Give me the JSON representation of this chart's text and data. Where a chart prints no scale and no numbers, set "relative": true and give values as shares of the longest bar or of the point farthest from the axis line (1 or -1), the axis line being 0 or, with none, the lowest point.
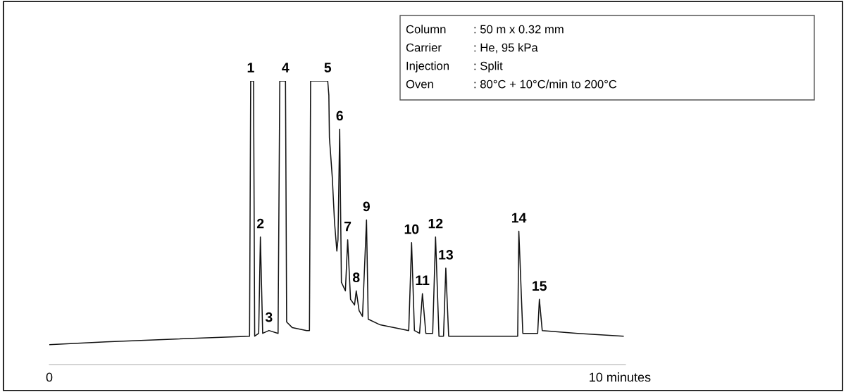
{
  "chart_data": {
    "type": "line",
    "relative": true,
    "x": [
      0,
      0.99,
      2.22,
      3.51,
      3.53,
      3.58,
      3.6,
      3.67,
      3.7,
      3.74,
      3.85,
      4.01,
      4.04,
      4.14,
      4.16,
      4.26,
      4.51,
      4.56,
      4.58,
      4.88,
      4.9,
      4.91,
      4.96,
      5.0,
      5.04,
      5.06,
      5.09,
      5.12,
      5.19,
      5.23,
      5.28,
      5.35,
      5.38,
      5.43,
      5.49,
      5.56,
      5.59,
      5.8,
      6.3,
      6.35,
      6.4,
      6.49,
      6.54,
      6.6,
      6.72,
      6.77,
      6.83,
      6.91,
      6.95,
      7.0,
      7.78,
      8.21,
      8.23,
      8.3,
      8.56,
      8.59,
      8.64,
      9.26,
      10.06
    ],
    "series": [
      {
        "color": "#111111",
        "values": [
          0.07,
          0.08,
          0.09,
          0.1,
          1,
          1,
          0.1,
          0.11,
          0.45,
          0.11,
          0.12,
          0.11,
          1,
          1,
          0.15,
          0.13,
          0.12,
          0.12,
          1,
          1,
          0.95,
          0.8,
          0.66,
          0.5,
          0.4,
          0.44,
          0.83,
          0.29,
          0.26,
          0.44,
          0.23,
          0.21,
          0.26,
          0.19,
          0.17,
          0.51,
          0.16,
          0.14,
          0.12,
          0.43,
          0.12,
          0.11,
          0.25,
          0.11,
          0.11,
          0.45,
          0.1,
          0.1,
          0.34,
          0.1,
          0.1,
          0.1,
          0.47,
          0.11,
          0.11,
          0.23,
          0.12,
          0.11,
          0.1
        ]
      }
    ],
    "xlim": [
      0,
      10.1
    ],
    "xticks": [
      0,
      {
        "value": 10,
        "label": "10 minutes"
      }
    ],
    "tick_labels": "x",
    "annotations": [
      {
        "text": "1",
        "x": 3.53,
        "y": 1
      },
      {
        "text": "2",
        "x": 3.7,
        "y": 0.45
      },
      {
        "text": "3",
        "x": 3.85,
        "y": 0.12
      },
      {
        "text": "4",
        "x": 4.14,
        "y": 1
      },
      {
        "text": "5",
        "x": 4.88,
        "y": 1
      },
      {
        "text": "6",
        "x": 5.09,
        "y": 0.83
      },
      {
        "text": "7",
        "x": 5.23,
        "y": 0.44
      },
      {
        "text": "8",
        "x": 5.38,
        "y": 0.26
      },
      {
        "text": "9",
        "x": 5.56,
        "y": 0.51
      },
      {
        "text": "10",
        "x": 6.35,
        "y": 0.43
      },
      {
        "text": "11",
        "x": 6.54,
        "y": 0.25
      },
      {
        "text": "12",
        "x": 6.77,
        "y": 0.45
      },
      {
        "text": "13",
        "x": 6.95,
        "y": 0.34
      },
      {
        "text": "14",
        "x": 8.23,
        "y": 0.47
      },
      {
        "text": "15",
        "x": 8.59,
        "y": 0.23
      },
      "Column",
      ": 50 m x 0.32 mm",
      "Carrier",
      ": He, 95 kPa",
      "Injection",
      ": Split",
      "Oven",
      ": 80°C + 10°C/min to 200°C"
    ]
  }
}
